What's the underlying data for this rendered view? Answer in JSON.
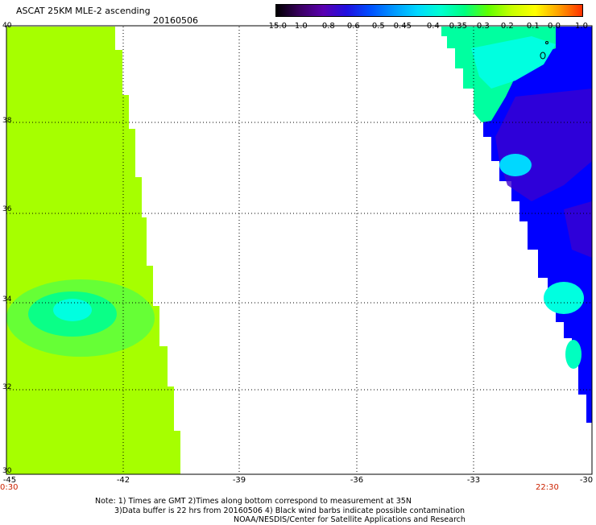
{
  "header": {
    "title": "ASCAT 25KM MLE-2 ascending",
    "date": "20160506"
  },
  "colorbar": {
    "labels": [
      "-15.0",
      "-1.0",
      "-0.8",
      "-0.6",
      "-0.5",
      "-0.45",
      "-0.4",
      "-0.35",
      "-0.3",
      "-0.2",
      "-0.1",
      "0.0",
      "1.0"
    ],
    "colors": [
      "#000000",
      "#3a0060",
      "#5a00b0",
      "#2010e0",
      "#0050ff",
      "#0098ff",
      "#00d8ff",
      "#00ffd0",
      "#00ff80",
      "#60ff00",
      "#c8ff00",
      "#ffff00",
      "#ffa000",
      "#ff3000"
    ]
  },
  "map": {
    "lat_labels": [
      "40",
      "38",
      "36",
      "34",
      "32",
      "30"
    ],
    "lon_labels": [
      "-45",
      "-42",
      "-39",
      "-36",
      "-33",
      "-30"
    ],
    "lat_range": [
      30,
      40
    ],
    "lon_range": [
      -45,
      -30
    ],
    "time_left": "0:30",
    "time_right": "22:30",
    "colors": {
      "green": "#a6ff00",
      "swath_edge": "#80ff40",
      "cyan": "#00ffe0",
      "blue": "#0000ff",
      "purple": "#3a00d0",
      "grid": "#000000",
      "time": "#cc2200"
    }
  },
  "notes": {
    "line1": "Note: 1) Times are GMT 2)Times along bottom correspond to measurement at 35N",
    "line2": "3)Data buffer is 22 hrs from 20160506 4) Black wind barbs indicate possible contamination",
    "line3": "NOAA/NESDIS/Center for Satellite Applications and Research"
  }
}
